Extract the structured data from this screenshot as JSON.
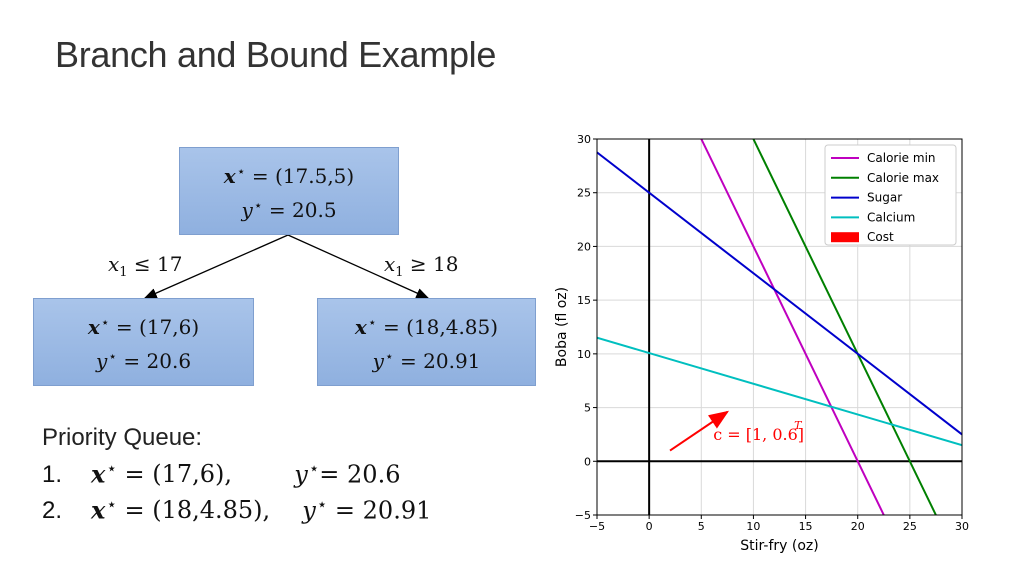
{
  "slide": {
    "title": "Branch and Bound Example"
  },
  "tree": {
    "root": {
      "x_value": "(17.5,5)",
      "y_value": "20.5"
    },
    "left": {
      "x_value": "(17,6)",
      "y_value": "20.6",
      "branch_op": "≤",
      "branch_rhs": "17"
    },
    "right": {
      "x_value": "(18,4.85)",
      "y_value": "20.91",
      "branch_op": "≥",
      "branch_rhs": "18"
    }
  },
  "priority_queue": {
    "heading": "Priority Queue:",
    "items": [
      {
        "index": "1.",
        "x_value": "(17,6),",
        "y_value": "20.6"
      },
      {
        "index": "2.",
        "x_value": "(18,4.85),",
        "y_value": "20.91"
      }
    ]
  },
  "chart_data": {
    "type": "line",
    "xlabel": "Stir-fry (oz)",
    "ylabel": "Boba (fl oz)",
    "xlim": [
      -5,
      30
    ],
    "ylim": [
      -5,
      30
    ],
    "xticks": [
      -5,
      0,
      5,
      10,
      15,
      20,
      25,
      30
    ],
    "yticks": [
      -5,
      0,
      5,
      10,
      15,
      20,
      25,
      30
    ],
    "grid": true,
    "legend_position": "top-right",
    "series": [
      {
        "name": "Calorie min",
        "color": "#bf00bf",
        "points": [
          [
            5,
            30
          ],
          [
            22.5,
            -5
          ]
        ]
      },
      {
        "name": "Calorie max",
        "color": "#008000",
        "points": [
          [
            10,
            30
          ],
          [
            27.5,
            -5
          ]
        ]
      },
      {
        "name": "Sugar",
        "color": "#0000cc",
        "points": [
          [
            -5,
            28.75
          ],
          [
            30,
            2.5
          ]
        ]
      },
      {
        "name": "Calcium",
        "color": "#00bfbf",
        "points": [
          [
            -5,
            11.5
          ],
          [
            30,
            1.5
          ]
        ]
      },
      {
        "name": "Cost",
        "color": "#ff0000",
        "points": []
      }
    ],
    "annotation": {
      "text": "c = [1, 0.6]",
      "superscript": "T",
      "color": "#ff0000",
      "arrow_from": [
        2,
        1
      ],
      "arrow_to": [
        7.5,
        4.6
      ]
    }
  }
}
